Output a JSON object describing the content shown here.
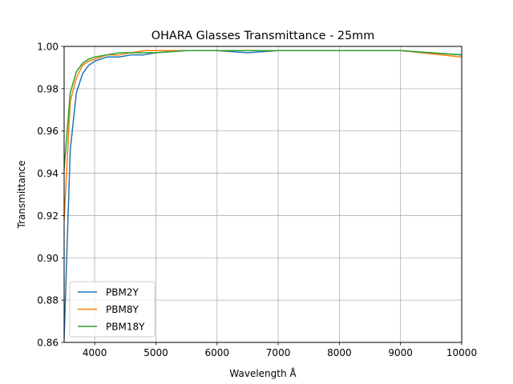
{
  "chart_data": {
    "type": "line",
    "title": "OHARA Glasses Transmittance - 25mm",
    "xlabel": "Wavelength Å",
    "ylabel": "Transmittance",
    "xlim": [
      3500,
      10000
    ],
    "ylim": [
      0.86,
      1.0
    ],
    "xticks": [
      4000,
      5000,
      6000,
      7000,
      8000,
      9000,
      10000
    ],
    "yticks": [
      0.86,
      0.88,
      0.9,
      0.92,
      0.94,
      0.96,
      0.98,
      1.0
    ],
    "xtick_labels": [
      "4000",
      "5000",
      "6000",
      "7000",
      "8000",
      "9000",
      "10000"
    ],
    "ytick_labels": [
      "0.86",
      "0.88",
      "0.90",
      "0.92",
      "0.94",
      "0.96",
      "0.98",
      "1.00"
    ],
    "grid": true,
    "legend_position": "lower-left",
    "series": [
      {
        "name": "PBM2Y",
        "color": "#1f77b4",
        "x": [
          3500,
          3600,
          3700,
          3800,
          3900,
          4000,
          4200,
          4400,
          4600,
          4800,
          5000,
          5500,
          6000,
          6500,
          7000,
          8000,
          9000,
          10000
        ],
        "y": [
          0.862,
          0.951,
          0.978,
          0.987,
          0.991,
          0.993,
          0.995,
          0.995,
          0.996,
          0.996,
          0.997,
          0.998,
          0.998,
          0.997,
          0.998,
          0.998,
          0.998,
          0.996
        ]
      },
      {
        "name": "PBM8Y",
        "color": "#ff7f0e",
        "x": [
          3500,
          3600,
          3700,
          3800,
          3900,
          4000,
          4200,
          4400,
          4600,
          4800,
          5000,
          5500,
          6000,
          6500,
          7000,
          8000,
          9000,
          10000
        ],
        "y": [
          0.918,
          0.974,
          0.985,
          0.991,
          0.993,
          0.994,
          0.996,
          0.996,
          0.997,
          0.998,
          0.998,
          0.998,
          0.998,
          0.998,
          0.998,
          0.998,
          0.998,
          0.995
        ]
      },
      {
        "name": "PBM18Y",
        "color": "#2ca02c",
        "x": [
          3500,
          3600,
          3700,
          3800,
          3900,
          4000,
          4200,
          4400,
          4600,
          4800,
          5000,
          5500,
          6000,
          6500,
          7000,
          8000,
          9000,
          10000
        ],
        "y": [
          0.942,
          0.978,
          0.988,
          0.992,
          0.994,
          0.995,
          0.996,
          0.997,
          0.997,
          0.997,
          0.997,
          0.998,
          0.998,
          0.998,
          0.998,
          0.998,
          0.998,
          0.996
        ]
      }
    ]
  }
}
